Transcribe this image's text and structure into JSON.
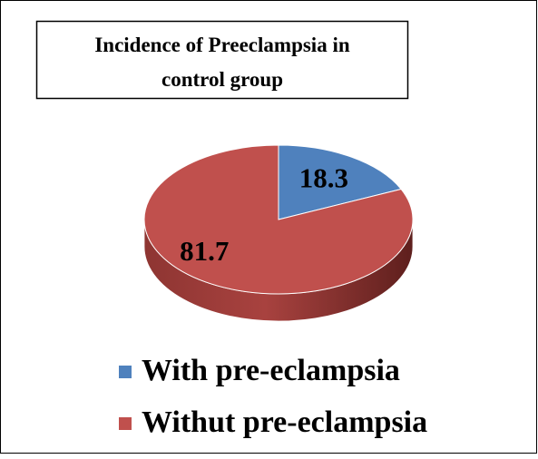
{
  "chart_data": {
    "type": "pie",
    "title": "Incidence of Preeclampsia in control group",
    "categories": [
      "With pre-eclampsia",
      "Withut pre-eclampsia"
    ],
    "values": [
      18.3,
      81.7
    ],
    "colors": [
      "#4f81bd",
      "#c0504d"
    ],
    "legend": "bottom"
  }
}
